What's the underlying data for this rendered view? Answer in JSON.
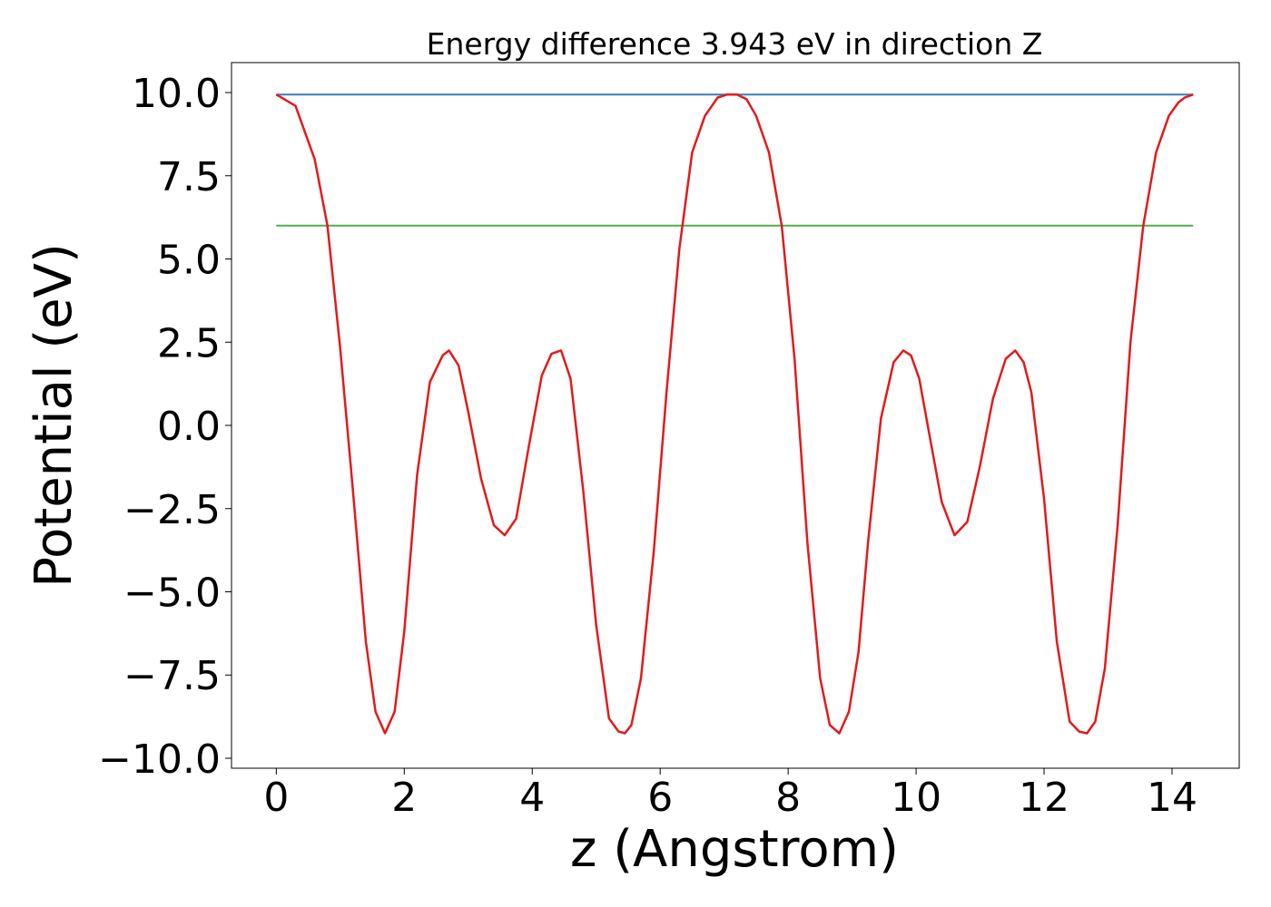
{
  "chart_data": {
    "type": "line",
    "title": "Energy difference 3.943 eV in direction Z",
    "xlabel": "z (Angstrom)",
    "ylabel": "Potential (eV)",
    "xlim": [
      -0.7,
      15.05
    ],
    "ylim": [
      -10.3,
      10.9
    ],
    "xticks": [
      0,
      2,
      4,
      6,
      8,
      10,
      12,
      14
    ],
    "xtick_labels": [
      "0",
      "2",
      "4",
      "6",
      "8",
      "10",
      "12",
      "14"
    ],
    "yticks": [
      10.0,
      7.5,
      5.0,
      2.5,
      0.0,
      -2.5,
      -5.0,
      -7.5,
      -10.0
    ],
    "ytick_labels": [
      "10.0",
      "7.5",
      "5.0",
      "2.5",
      "0.0",
      "−2.5",
      "−5.0",
      "−7.5",
      "−10.0"
    ],
    "grid": false,
    "series": [
      {
        "color": "#e31a1c",
        "x": [
          0.0,
          0.3,
          0.6,
          0.8,
          1.0,
          1.2,
          1.4,
          1.55,
          1.7,
          1.85,
          2.0,
          2.2,
          2.4,
          2.6,
          2.7,
          2.85,
          3.0,
          3.2,
          3.4,
          3.57,
          3.75,
          3.95,
          4.15,
          4.3,
          4.45,
          4.6,
          4.8,
          5.0,
          5.2,
          5.35,
          5.45,
          5.55,
          5.7,
          5.9,
          6.1,
          6.3,
          6.5,
          6.7,
          6.9,
          7.05,
          7.2,
          7.35,
          7.5,
          7.7,
          7.9,
          8.1,
          8.3,
          8.5,
          8.65,
          8.8,
          8.95,
          9.1,
          9.25,
          9.45,
          9.65,
          9.8,
          9.92,
          10.05,
          10.2,
          10.4,
          10.6,
          10.8,
          11.0,
          11.2,
          11.4,
          11.55,
          11.68,
          11.8,
          12.0,
          12.2,
          12.4,
          12.55,
          12.67,
          12.8,
          12.95,
          13.15,
          13.35,
          13.55,
          13.75,
          13.95,
          14.1,
          14.2,
          14.33
        ],
        "y": [
          9.94,
          9.6,
          8.0,
          6.0,
          2.3,
          -2.0,
          -6.5,
          -8.6,
          -9.25,
          -8.6,
          -6.2,
          -1.5,
          1.3,
          2.1,
          2.25,
          1.8,
          0.4,
          -1.6,
          -3.0,
          -3.3,
          -2.8,
          -0.6,
          1.5,
          2.15,
          2.25,
          1.4,
          -2.0,
          -6.0,
          -8.8,
          -9.2,
          -9.25,
          -9.0,
          -7.6,
          -3.8,
          1.0,
          5.3,
          8.2,
          9.3,
          9.85,
          9.94,
          9.94,
          9.8,
          9.3,
          8.2,
          6.0,
          2.0,
          -3.5,
          -7.6,
          -9.0,
          -9.25,
          -8.6,
          -6.8,
          -3.5,
          0.2,
          1.9,
          2.25,
          2.1,
          1.4,
          -0.2,
          -2.3,
          -3.3,
          -2.9,
          -1.2,
          0.8,
          2.0,
          2.25,
          1.9,
          1.0,
          -2.2,
          -6.5,
          -8.9,
          -9.2,
          -9.25,
          -8.9,
          -7.3,
          -3.0,
          2.5,
          6.0,
          8.2,
          9.3,
          9.7,
          9.85,
          9.94
        ]
      },
      {
        "color": "#377eb8",
        "x": [
          0.0,
          14.33
        ],
        "y": [
          9.94,
          9.94
        ]
      },
      {
        "color": "#4daf4a",
        "x": [
          0.0,
          14.33
        ],
        "y": [
          6.0,
          6.0
        ]
      }
    ]
  }
}
